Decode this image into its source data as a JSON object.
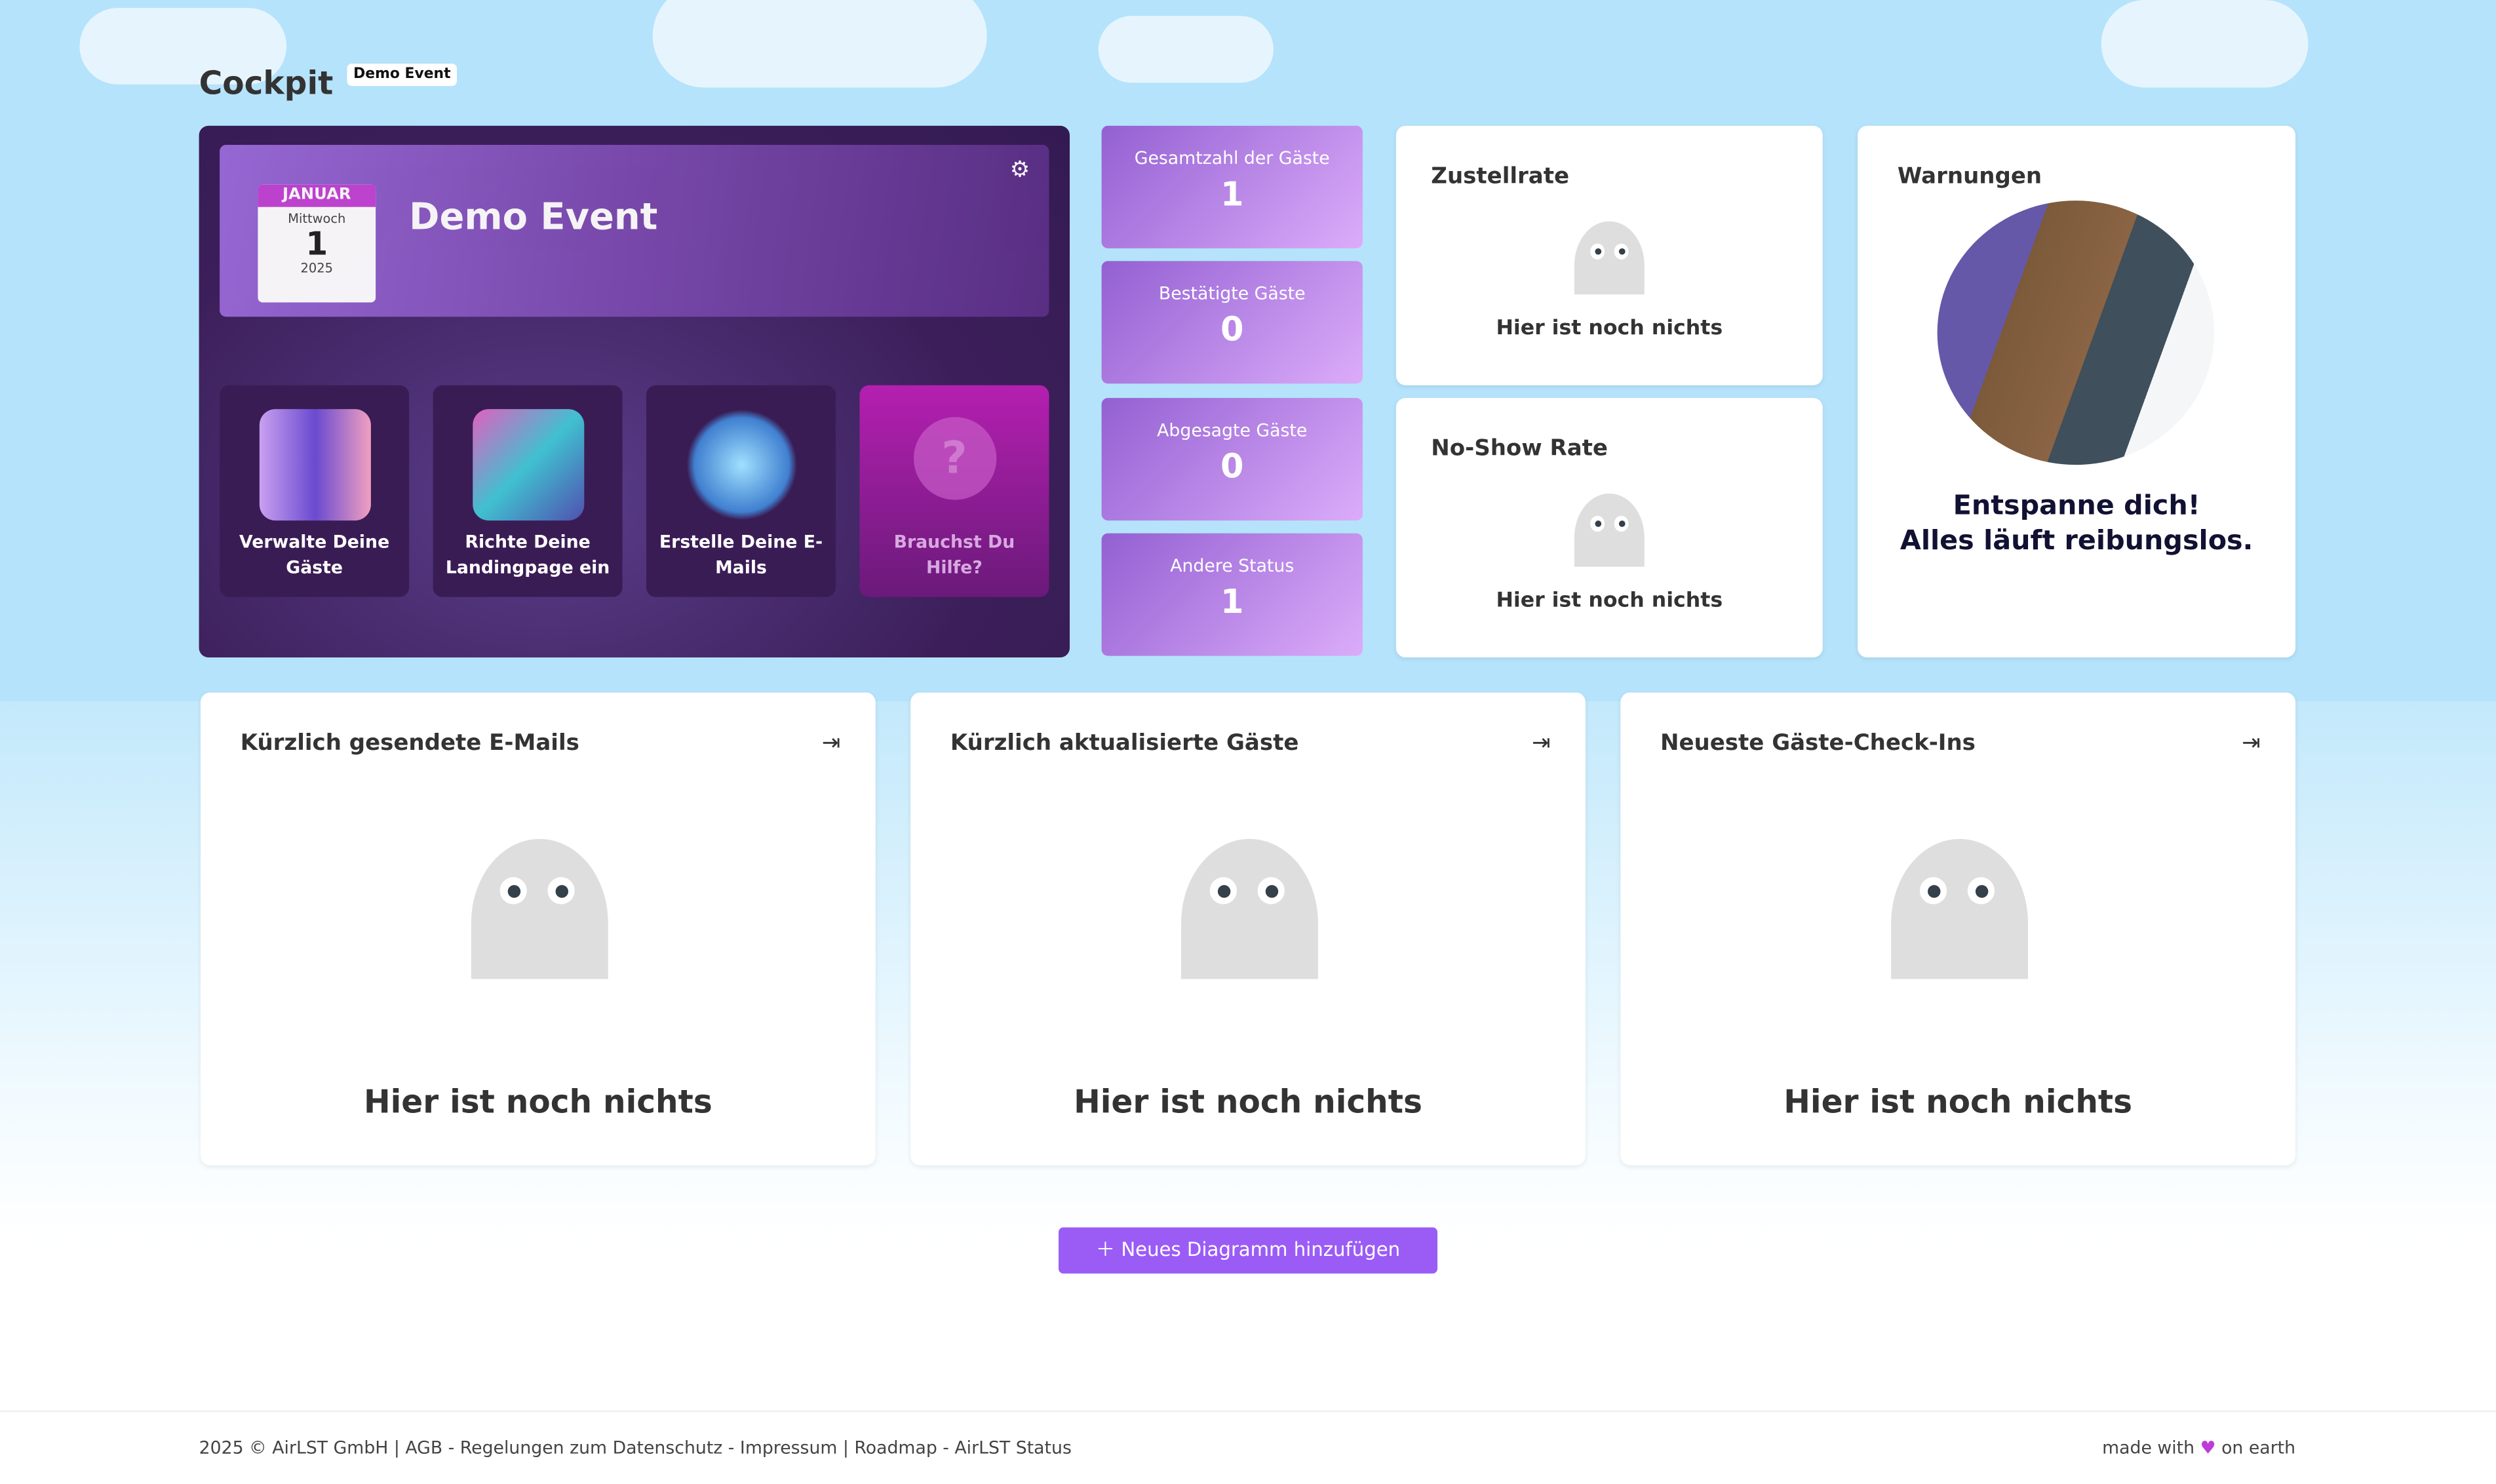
{
  "header": {
    "title": "Cockpit",
    "event_badge": "Demo Event"
  },
  "hero": {
    "month": "JANUAR",
    "weekday": "Mittwoch",
    "day": "1",
    "year": "2025",
    "event_name": "Demo Event",
    "tiles": [
      {
        "label": "Verwalte Deine Gäste"
      },
      {
        "label": "Richte Deine Landingpage ein"
      },
      {
        "label": "Erstelle Deine E-Mails"
      },
      {
        "label": "Brauchst Du Hilfe?"
      }
    ]
  },
  "stats": [
    {
      "label": "Gesamtzahl der Gäste",
      "value": "1"
    },
    {
      "label": "Bestätigte Gäste",
      "value": "0"
    },
    {
      "label": "Abgesagte Gäste",
      "value": "0"
    },
    {
      "label": "Andere Status",
      "value": "1"
    }
  ],
  "cards": {
    "zustellrate": {
      "title": "Zustellrate",
      "empty": "Hier ist noch nichts"
    },
    "noshow": {
      "title": "No-Show Rate",
      "empty": "Hier ist noch nichts"
    },
    "warnings": {
      "title": "Warnungen",
      "line1": "Entspanne dich!",
      "line2": "Alles läuft reibungslos."
    }
  },
  "lists": [
    {
      "title": "Kürzlich gesendete E-Mails",
      "empty": "Hier ist noch nichts"
    },
    {
      "title": "Kürzlich aktualisierte Gäste",
      "empty": "Hier ist noch nichts"
    },
    {
      "title": "Neueste Gäste-Check-Ins",
      "empty": "Hier ist noch nichts"
    }
  ],
  "add_button": "Neues Diagramm hinzufügen",
  "footer": {
    "left": "2025 © AirLST GmbH | AGB - Regelungen zum Datenschutz - Impressum | Roadmap - AirLST Status",
    "made_with": "made with",
    "on_earth": "on earth"
  },
  "colors": {
    "accent": "#9b5cf6",
    "heart": "#c03ad8"
  }
}
